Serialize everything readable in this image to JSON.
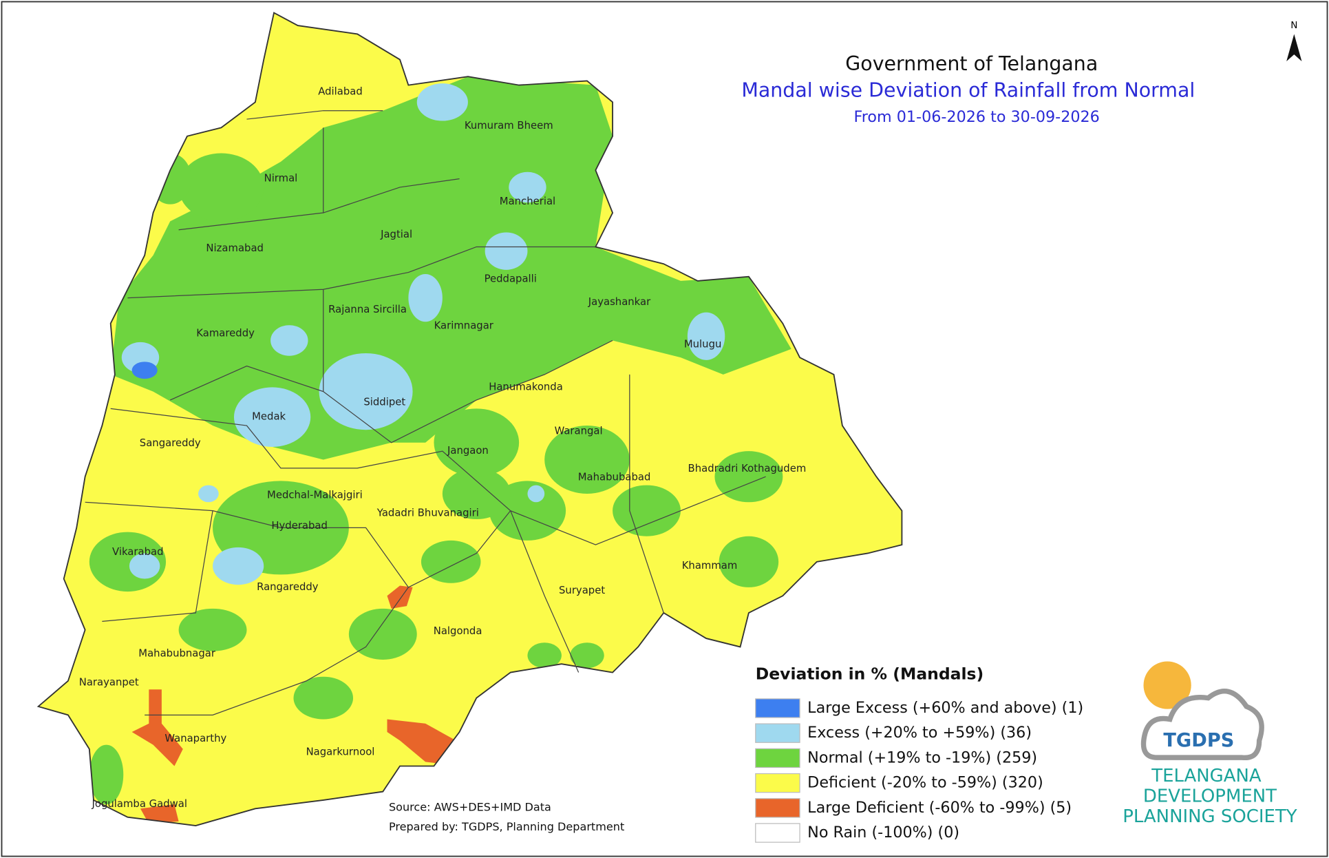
{
  "header": {
    "title": "Government of Telangana",
    "subtitle": "Mandal wise Deviation of Rainfall from Normal",
    "period": "From 01-06-2026 to 30-09-2026"
  },
  "north_label": "N",
  "districts": [
    "Adilabad",
    "Kumuram Bheem",
    "Nirmal",
    "Mancherial",
    "Jagtial",
    "Nizamabad",
    "Peddapalli",
    "Jayashankar",
    "Rajanna Sircilla",
    "Karimnagar",
    "Kamareddy",
    "Mulugu",
    "Siddipet",
    "Hanumakonda",
    "Medak",
    "Warangal",
    "Sangareddy",
    "Jangaon",
    "Bhadradri Kothagudem",
    "Mahabubabad",
    "Medchal-Malkajgiri",
    "Yadadri Bhuvanagiri",
    "Hyderabad",
    "Vikarabad",
    "Khammam",
    "Rangareddy",
    "Suryapet",
    "Nalgonda",
    "Mahabubnagar",
    "Narayanpet",
    "Nagarkurnool",
    "Wanaparthy",
    "Jogulamba Gadwal"
  ],
  "legend": {
    "title": "Deviation in % (Mandals)",
    "items": [
      {
        "label": "Large Excess (+60% and above) (1)",
        "color": "#3d7ff0"
      },
      {
        "label": "Excess (+20% to +59%) (36)",
        "color": "#9fd9ef"
      },
      {
        "label": "Normal (+19% to -19%) (259)",
        "color": "#6ed43f"
      },
      {
        "label": "Deficient (-20% to -59%) (320)",
        "color": "#fbfb4a"
      },
      {
        "label": "Large Deficient (-60% to -99%) (5)",
        "color": "#e8652a"
      },
      {
        "label": "No Rain (-100%) (0)",
        "color": "#ffffff"
      }
    ]
  },
  "source": [
    "Source: AWS+DES+IMD Data",
    "Prepared by: TGDPS, Planning Department"
  ],
  "logo": {
    "badge": "TGDPS",
    "lines": [
      "TELANGANA",
      "DEVELOPMENT",
      "PLANNING SOCIETY"
    ]
  }
}
